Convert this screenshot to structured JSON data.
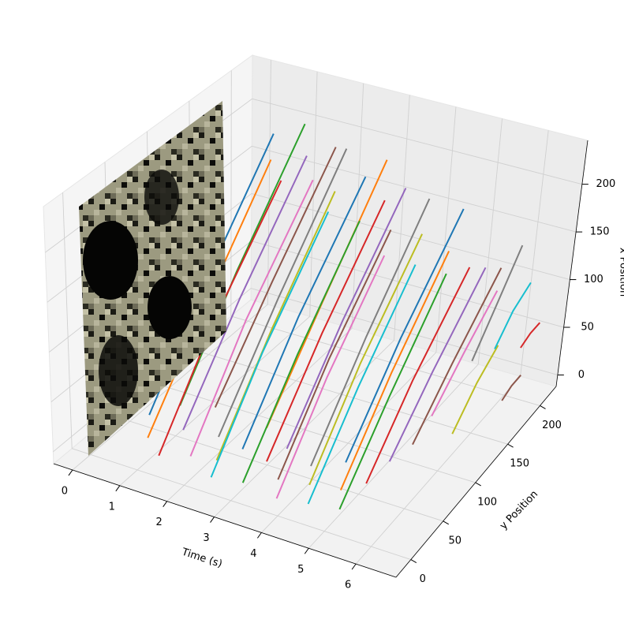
{
  "chart_data": {
    "type": "line3d",
    "xlabel": "Time (s)",
    "ylabel": "y Position",
    "zlabel": "x Position",
    "xlim": [
      -0.4,
      6.85
    ],
    "ylim": [
      -23,
      225
    ],
    "zlim": [
      -12,
      246
    ],
    "xticks": [
      0,
      1,
      2,
      3,
      4,
      5,
      6
    ],
    "yticks": [
      0,
      50,
      100,
      150,
      200
    ],
    "zticks": [
      0,
      50,
      100,
      150,
      200
    ],
    "grid": true,
    "series": [
      {
        "color": "#1f77b4",
        "x": [
          0.6,
          0.65,
          0.7
        ],
        "y": [
          40,
          110,
          190
        ],
        "z": [
          10,
          100,
          200
        ]
      },
      {
        "color": "#ff7f0e",
        "x": [
          0.9,
          0.95,
          1.0
        ],
        "y": [
          20,
          90,
          170
        ],
        "z": [
          5,
          90,
          190
        ]
      },
      {
        "color": "#2ca02c",
        "x": [
          1.1,
          1.15,
          1.2
        ],
        "y": [
          50,
          120,
          200
        ],
        "z": [
          20,
          110,
          210
        ]
      },
      {
        "color": "#d62728",
        "x": [
          1.3,
          1.35,
          1.4
        ],
        "y": [
          10,
          80,
          160
        ],
        "z": [
          0,
          90,
          180
        ]
      },
      {
        "color": "#9467bd",
        "x": [
          1.5,
          1.55,
          1.6
        ],
        "y": [
          30,
          100,
          180
        ],
        "z": [
          15,
          100,
          195
        ]
      },
      {
        "color": "#8c564b",
        "x": [
          1.7,
          1.75,
          1.8
        ],
        "y": [
          60,
          130,
          205
        ],
        "z": [
          20,
          100,
          190
        ]
      },
      {
        "color": "#e377c2",
        "x": [
          1.9,
          1.95,
          2.0
        ],
        "y": [
          15,
          85,
          165
        ],
        "z": [
          5,
          95,
          185
        ]
      },
      {
        "color": "#7f7f7f",
        "x": [
          2.1,
          2.15,
          2.2
        ],
        "y": [
          40,
          115,
          195
        ],
        "z": [
          10,
          100,
          200
        ]
      },
      {
        "color": "#bcbd22",
        "x": [
          2.3,
          2.35,
          2.4
        ],
        "y": [
          25,
          95,
          170
        ],
        "z": [
          0,
          85,
          175
        ]
      },
      {
        "color": "#17becf",
        "x": [
          2.5,
          2.55,
          2.6
        ],
        "y": [
          5,
          70,
          150
        ],
        "z": [
          0,
          80,
          170
        ]
      },
      {
        "color": "#1f77b4",
        "x": [
          2.7,
          2.75,
          2.8
        ],
        "y": [
          35,
          105,
          185
        ],
        "z": [
          10,
          95,
          185
        ]
      },
      {
        "color": "#ff7f0e",
        "x": [
          2.9,
          2.95,
          3.0
        ],
        "y": [
          55,
          125,
          200
        ],
        "z": [
          20,
          100,
          195
        ]
      },
      {
        "color": "#2ca02c",
        "x": [
          3.1,
          3.15,
          3.2
        ],
        "y": [
          10,
          80,
          155
        ],
        "z": [
          0,
          80,
          165
        ]
      },
      {
        "color": "#d62728",
        "x": [
          3.3,
          3.35,
          3.4
        ],
        "y": [
          30,
          100,
          175
        ],
        "z": [
          10,
          90,
          175
        ]
      },
      {
        "color": "#9467bd",
        "x": [
          3.5,
          3.55,
          3.6
        ],
        "y": [
          45,
          115,
          190
        ],
        "z": [
          15,
          95,
          180
        ]
      },
      {
        "color": "#8c564b",
        "x": [
          3.7,
          3.75,
          3.8
        ],
        "y": [
          20,
          85,
          160
        ],
        "z": [
          5,
          80,
          160
        ]
      },
      {
        "color": "#e377c2",
        "x": [
          3.9,
          3.95,
          4.0
        ],
        "y": [
          5,
          70,
          140
        ],
        "z": [
          0,
          75,
          150
        ]
      },
      {
        "color": "#7f7f7f",
        "x": [
          4.1,
          4.15,
          4.2
        ],
        "y": [
          40,
          110,
          185
        ],
        "z": [
          10,
          90,
          180
        ]
      },
      {
        "color": "#bcbd22",
        "x": [
          4.3,
          4.35,
          4.4
        ],
        "y": [
          25,
          90,
          165
        ],
        "z": [
          5,
          80,
          160
        ]
      },
      {
        "color": "#17becf",
        "x": [
          4.5,
          4.55,
          4.6
        ],
        "y": [
          10,
          75,
          145
        ],
        "z": [
          0,
          70,
          145
        ]
      },
      {
        "color": "#1f77b4",
        "x": [
          4.7,
          4.75,
          4.8
        ],
        "y": [
          50,
          120,
          195
        ],
        "z": [
          15,
          90,
          170
        ]
      },
      {
        "color": "#ff7f0e",
        "x": [
          4.9,
          4.95,
          5.0
        ],
        "y": [
          30,
          95,
          165
        ],
        "z": [
          5,
          75,
          150
        ]
      },
      {
        "color": "#2ca02c",
        "x": [
          5.1,
          5.15,
          5.2
        ],
        "y": [
          15,
          80,
          150
        ],
        "z": [
          0,
          65,
          140
        ]
      },
      {
        "color": "#d62728",
        "x": [
          5.3,
          5.35,
          5.4
        ],
        "y": [
          40,
          100,
          170
        ],
        "z": [
          10,
          70,
          135
        ]
      },
      {
        "color": "#9467bd",
        "x": [
          5.5,
          5.55,
          5.6
        ],
        "y": [
          60,
          115,
          180
        ],
        "z": [
          20,
          70,
          130
        ]
      },
      {
        "color": "#8c564b",
        "x": [
          5.7,
          5.75,
          5.8
        ],
        "y": [
          80,
          130,
          190
        ],
        "z": [
          25,
          70,
          125
        ]
      },
      {
        "color": "#e377c2",
        "x": [
          5.8,
          5.85,
          5.9
        ],
        "y": [
          100,
          140,
          180
        ],
        "z": [
          40,
          75,
          110
        ]
      },
      {
        "color": "#7f7f7f",
        "x": [
          5.9,
          5.95,
          6.0
        ],
        "y": [
          150,
          175,
          205
        ],
        "z": [
          60,
          95,
          140
        ]
      },
      {
        "color": "#bcbd22",
        "x": [
          6.0,
          6.05,
          6.1
        ],
        "y": [
          120,
          150,
          175
        ],
        "z": [
          10,
          40,
          60
        ]
      },
      {
        "color": "#17becf",
        "x": [
          6.1,
          6.15,
          6.2
        ],
        "y": [
          170,
          190,
          210
        ],
        "z": [
          60,
          85,
          100
        ]
      },
      {
        "color": "#d62728",
        "x": [
          6.4,
          6.45,
          6.5
        ],
        "y": [
          190,
          200,
          210
        ],
        "z": [
          50,
          58,
          62
        ]
      },
      {
        "color": "#8c564b",
        "x": [
          6.5,
          6.55,
          6.6
        ],
        "y": [
          160,
          170,
          180
        ],
        "z": [
          20,
          28,
          32
        ]
      }
    ]
  }
}
